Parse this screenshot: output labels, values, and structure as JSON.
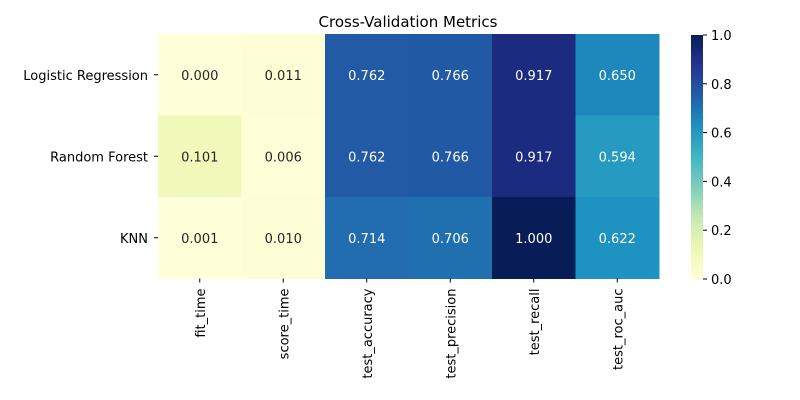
{
  "chart_data": {
    "type": "heatmap",
    "title": "Cross-Validation Metrics",
    "rows": [
      "Logistic Regression",
      "Random Forest",
      "KNN"
    ],
    "columns": [
      "fit_time",
      "score_time",
      "test_accuracy",
      "test_precision",
      "test_recall",
      "test_roc_auc"
    ],
    "values": [
      [
        0.0,
        0.011,
        0.762,
        0.766,
        0.917,
        0.65
      ],
      [
        0.101,
        0.006,
        0.762,
        0.766,
        0.917,
        0.594
      ],
      [
        0.001,
        0.01,
        0.714,
        0.706,
        1.0,
        0.622
      ]
    ],
    "annotations": [
      [
        "0.000",
        "0.011",
        "0.762",
        "0.766",
        "0.917",
        "0.650"
      ],
      [
        "0.101",
        "0.006",
        "0.762",
        "0.766",
        "0.917",
        "0.594"
      ],
      [
        "0.001",
        "0.010",
        "0.714",
        "0.706",
        "1.000",
        "0.622"
      ]
    ],
    "colormap": "YlGnBu",
    "vmin": 0.0,
    "vmax": 1.0,
    "colorbar_ticks": [
      "0.0",
      "0.2",
      "0.4",
      "0.6",
      "0.8",
      "1.0"
    ],
    "colorbar_tick_values": [
      0.0,
      0.2,
      0.4,
      0.6,
      0.8,
      1.0
    ]
  }
}
